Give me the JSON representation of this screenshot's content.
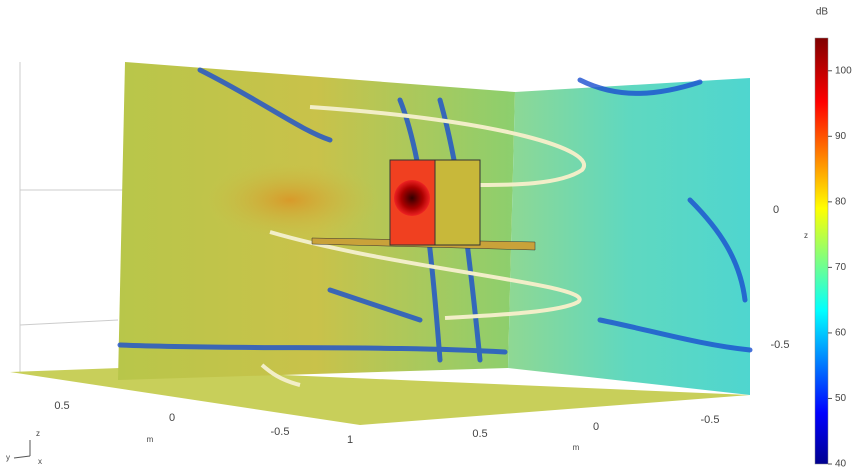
{
  "scene": {
    "axes": {
      "y_ticks": [
        "0.5",
        "0",
        "-0.5",
        "1"
      ],
      "y_unit": "m",
      "x_ticks": [
        "0.5",
        "0",
        "-0.5"
      ],
      "x_unit": "m",
      "z_ticks": [
        "0",
        "-0.5"
      ],
      "z_unit": "z",
      "triad": [
        "z",
        "y",
        "x"
      ]
    },
    "colorbar": {
      "label": "dB",
      "lim": [
        40,
        105
      ],
      "ticks": [
        40,
        50,
        60,
        70,
        80,
        90,
        100
      ]
    }
  }
}
